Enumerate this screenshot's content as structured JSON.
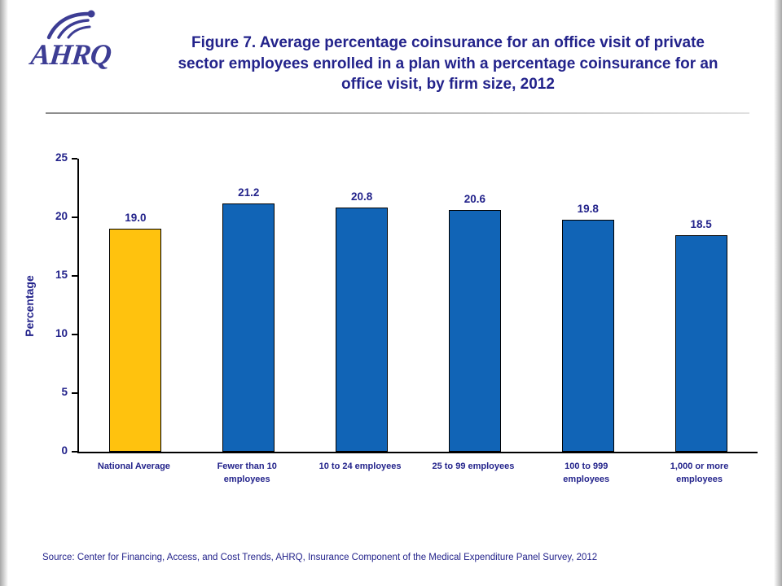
{
  "header": {
    "logo_text": "AHRQ",
    "title": "Figure 7. Average percentage coinsurance for an office visit of private sector employees enrolled in a plan with a percentage coinsurance for an office visit, by firm size, 2012"
  },
  "chart_data": {
    "type": "bar",
    "title": "Figure 7. Average percentage coinsurance for an office visit of private sector employees enrolled in a plan with a percentage coinsurance for an office visit, by firm size, 2012",
    "xlabel": "",
    "ylabel": "Percentage",
    "ylim": [
      0,
      25
    ],
    "yticks": [
      0,
      5,
      10,
      15,
      20,
      25
    ],
    "grid": false,
    "categories": [
      "National Average",
      "Fewer than 10 employees",
      "10 to 24 employees",
      "25 to 99 employees",
      "100 to 999 employees",
      "1,000 or more employees"
    ],
    "categories_wrapped": [
      "National Average",
      "Fewer than 10\nemployees",
      "10 to 24 employees",
      "25 to 99 employees",
      "100 to 999\nemployees",
      "1,000 or more\nemployees"
    ],
    "values": [
      19.0,
      21.2,
      20.8,
      20.6,
      19.8,
      18.5
    ],
    "value_labels": [
      "19.0",
      "21.2",
      "20.8",
      "20.6",
      "19.8",
      "18.5"
    ],
    "bar_colors": [
      "#FFC20E",
      "#1164B6",
      "#1164B6",
      "#1164B6",
      "#1164B6",
      "#1164B6"
    ]
  },
  "colors": {
    "text_navy": "#23238B",
    "national_average_bar": "#FFC20E",
    "firm_size_bar": "#1164B6"
  },
  "footer": {
    "source": "Source: Center for Financing, Access, and Cost Trends, AHRQ, Insurance Component of the Medical Expenditure Panel Survey, 2012"
  }
}
